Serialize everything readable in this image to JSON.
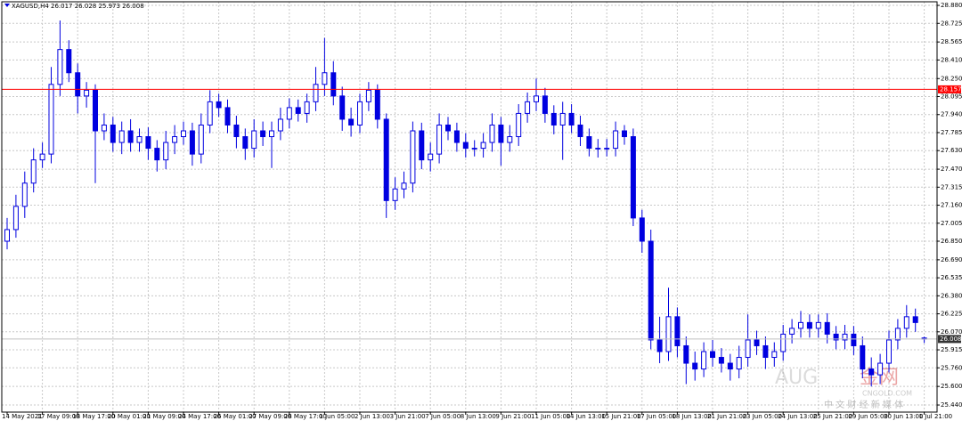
{
  "chart_data": {
    "type": "candlestick",
    "title": "XAGUSD,H4  26.017 26.028 25.973 26.008",
    "color": "#0000e0",
    "grid": true,
    "ylim": [
      25.379,
      28.911
    ],
    "yticks": [
      {
        "value": 28.88,
        "label": "28.880"
      },
      {
        "value": 28.725,
        "label": "28.725"
      },
      {
        "value": 28.565,
        "label": "28.565"
      },
      {
        "value": 28.41,
        "label": "28.410"
      },
      {
        "value": 28.25,
        "label": "28.250"
      },
      {
        "value": 28.095,
        "label": "28.095"
      },
      {
        "value": 27.94,
        "label": "27.940"
      },
      {
        "value": 27.785,
        "label": "27.785"
      },
      {
        "value": 27.63,
        "label": "27.630"
      },
      {
        "value": 27.47,
        "label": "27.470"
      },
      {
        "value": 27.315,
        "label": "27.315"
      },
      {
        "value": 27.16,
        "label": "27.160"
      },
      {
        "value": 27.005,
        "label": "27.005"
      },
      {
        "value": 26.85,
        "label": "26.850"
      },
      {
        "value": 26.69,
        "label": "26.690"
      },
      {
        "value": 26.535,
        "label": "26.535"
      },
      {
        "value": 26.38,
        "label": "26.380"
      },
      {
        "value": 26.225,
        "label": "26.225"
      },
      {
        "value": 26.07,
        "label": "26.070"
      },
      {
        "value": 25.915,
        "label": "25.915"
      },
      {
        "value": 25.76,
        "label": "25.760"
      },
      {
        "value": 25.6,
        "label": "25.600"
      },
      {
        "value": 25.44,
        "label": "25.440"
      }
    ],
    "xticks": [
      {
        "value": 0,
        "label": "14 May 2021"
      },
      {
        "value": 4,
        "label": "17 May 09:00"
      },
      {
        "value": 8,
        "label": "18 May 17:00"
      },
      {
        "value": 12,
        "label": "20 May 01:00"
      },
      {
        "value": 16,
        "label": "21 May 09:00"
      },
      {
        "value": 20,
        "label": "24 May 17:00"
      },
      {
        "value": 24,
        "label": "26 May 01:00"
      },
      {
        "value": 28,
        "label": "27 May 09:00"
      },
      {
        "value": 32,
        "label": "28 May 17:00"
      },
      {
        "value": 36,
        "label": "1 Jun 05:00"
      },
      {
        "value": 40,
        "label": "2 Jun 13:00"
      },
      {
        "value": 44,
        "label": "3 Jun 21:00"
      },
      {
        "value": 48,
        "label": "7 Jun 05:00"
      },
      {
        "value": 52,
        "label": "8 Jun 13:00"
      },
      {
        "value": 56,
        "label": "9 Jun 21:00"
      },
      {
        "value": 60,
        "label": "11 Jun 05:00"
      },
      {
        "value": 64,
        "label": "14 Jun 13:00"
      },
      {
        "value": 68,
        "label": "15 Jun 21:00"
      },
      {
        "value": 72,
        "label": "17 Jun 05:00"
      },
      {
        "value": 76,
        "label": "18 Jun 13:00"
      },
      {
        "value": 80,
        "label": "21 Jun 21:00"
      },
      {
        "value": 84,
        "label": "23 Jun 05:00"
      },
      {
        "value": 88,
        "label": "24 Jun 13:00"
      },
      {
        "value": 92,
        "label": "25 Jun 21:00"
      },
      {
        "value": 96,
        "label": "29 Jun 05:00"
      },
      {
        "value": 100,
        "label": "30 Jun 13:00"
      },
      {
        "value": 104,
        "label": "1 Jul 21:00"
      }
    ],
    "hlines": [
      {
        "value": 28.157,
        "color": "#ff0000"
      },
      {
        "value": 26.008,
        "color": "#c0c0c0"
      }
    ],
    "open": [
      26.85,
      26.95,
      27.15,
      27.35,
      27.55,
      27.6,
      28.2,
      28.5,
      28.3,
      28.1,
      28.15,
      27.8,
      27.85,
      27.7,
      27.8,
      27.7,
      27.75,
      27.65,
      27.55,
      27.7,
      27.75,
      27.8,
      27.6,
      27.85,
      28.05,
      28.0,
      27.85,
      27.75,
      27.65,
      27.8,
      27.75,
      27.8,
      27.9,
      28.0,
      27.95,
      28.05,
      28.2,
      28.3,
      28.1,
      27.9,
      27.85,
      28.05,
      28.15,
      27.9,
      27.2,
      27.3,
      27.35,
      27.8,
      27.55,
      27.6,
      27.85,
      27.8,
      27.7,
      27.65,
      27.65,
      27.7,
      27.85,
      27.7,
      27.75,
      27.95,
      28.05,
      28.1,
      27.95,
      27.85,
      27.95,
      27.85,
      27.75,
      27.65,
      27.65,
      27.65,
      27.8,
      27.75,
      27.05,
      26.85,
      26.0,
      25.9,
      26.2,
      25.95,
      25.8,
      25.75,
      25.9,
      25.85,
      25.8,
      25.75,
      25.85,
      26.0,
      25.95,
      25.85,
      25.9,
      26.05,
      26.1,
      26.15,
      26.1,
      26.15,
      26.05,
      26.0,
      26.05,
      25.95,
      25.75,
      25.7,
      25.8,
      26.0,
      26.1,
      26.2,
      26.017
    ],
    "high": [
      27.05,
      27.25,
      27.45,
      27.65,
      27.7,
      28.35,
      28.75,
      28.58,
      28.38,
      28.22,
      28.2,
      27.95,
      27.92,
      27.88,
      27.9,
      27.82,
      27.83,
      27.72,
      27.8,
      27.85,
      27.88,
      27.87,
      27.95,
      28.15,
      28.12,
      28.07,
      27.93,
      27.82,
      27.9,
      27.88,
      27.88,
      28.0,
      28.08,
      28.07,
      28.12,
      28.35,
      28.6,
      28.4,
      28.18,
      28.0,
      28.12,
      28.22,
      28.2,
      27.95,
      27.4,
      27.45,
      27.88,
      27.87,
      27.7,
      27.95,
      27.92,
      27.87,
      27.78,
      27.72,
      27.78,
      27.95,
      27.92,
      27.85,
      28.03,
      28.13,
      28.25,
      28.17,
      28.02,
      28.05,
      28.03,
      27.93,
      27.82,
      27.73,
      27.73,
      27.88,
      27.85,
      27.82,
      27.12,
      26.95,
      26.2,
      26.45,
      26.28,
      26.03,
      25.9,
      25.98,
      26.0,
      25.93,
      25.88,
      25.95,
      26.22,
      26.08,
      26.03,
      25.98,
      26.13,
      26.18,
      26.25,
      26.22,
      26.22,
      26.23,
      26.12,
      26.13,
      26.12,
      26.03,
      25.85,
      25.88,
      26.08,
      26.18,
      26.3,
      26.27,
      26.028
    ],
    "low": [
      26.78,
      26.88,
      27.05,
      27.27,
      27.48,
      27.52,
      28.1,
      28.22,
      27.95,
      28.0,
      27.35,
      27.72,
      27.62,
      27.6,
      27.62,
      27.62,
      27.55,
      27.45,
      27.47,
      27.6,
      27.68,
      27.5,
      27.52,
      27.78,
      27.92,
      27.78,
      27.65,
      27.55,
      27.57,
      27.67,
      27.48,
      27.72,
      27.82,
      27.88,
      27.87,
      27.97,
      28.1,
      28.02,
      27.8,
      27.75,
      27.78,
      27.97,
      27.82,
      27.05,
      27.12,
      27.22,
      27.27,
      27.47,
      27.45,
      27.52,
      27.72,
      27.62,
      27.57,
      27.58,
      27.57,
      27.62,
      27.5,
      27.62,
      27.67,
      27.87,
      27.97,
      27.87,
      27.77,
      27.55,
      27.78,
      27.67,
      27.58,
      27.57,
      27.58,
      27.58,
      27.68,
      26.98,
      26.75,
      25.92,
      25.8,
      25.82,
      25.85,
      25.62,
      25.65,
      25.68,
      25.77,
      25.72,
      25.65,
      25.67,
      25.77,
      25.87,
      25.75,
      25.77,
      25.82,
      25.97,
      26.02,
      26.02,
      26.02,
      25.97,
      25.92,
      25.92,
      25.87,
      25.67,
      25.6,
      25.62,
      25.72,
      25.92,
      26.02,
      26.07,
      25.973
    ],
    "close": [
      26.95,
      27.15,
      27.35,
      27.55,
      27.6,
      28.2,
      28.5,
      28.3,
      28.1,
      28.15,
      27.8,
      27.85,
      27.7,
      27.8,
      27.7,
      27.75,
      27.65,
      27.55,
      27.7,
      27.75,
      27.8,
      27.6,
      27.85,
      28.05,
      28.0,
      27.85,
      27.75,
      27.65,
      27.8,
      27.75,
      27.8,
      27.9,
      28.0,
      27.95,
      28.05,
      28.2,
      28.3,
      28.1,
      27.9,
      27.85,
      28.05,
      28.15,
      27.9,
      27.2,
      27.3,
      27.35,
      27.8,
      27.55,
      27.6,
      27.85,
      27.8,
      27.7,
      27.65,
      27.65,
      27.7,
      27.85,
      27.7,
      27.75,
      27.95,
      28.05,
      28.1,
      27.95,
      27.85,
      27.95,
      27.85,
      27.75,
      27.65,
      27.65,
      27.65,
      27.8,
      27.75,
      27.05,
      26.85,
      26.0,
      25.9,
      26.2,
      25.95,
      25.8,
      25.75,
      25.9,
      25.85,
      25.8,
      25.75,
      25.85,
      26.0,
      25.95,
      25.85,
      25.9,
      26.05,
      26.1,
      26.15,
      26.1,
      26.15,
      26.05,
      26.0,
      26.05,
      25.95,
      25.75,
      25.7,
      25.8,
      26.0,
      26.1,
      26.2,
      26.15,
      26.008
    ],
    "watermark": [
      "AUG",
      "金网",
      "CNGOLD.COM",
      "中 文 财 经 新 媒 体"
    ]
  }
}
